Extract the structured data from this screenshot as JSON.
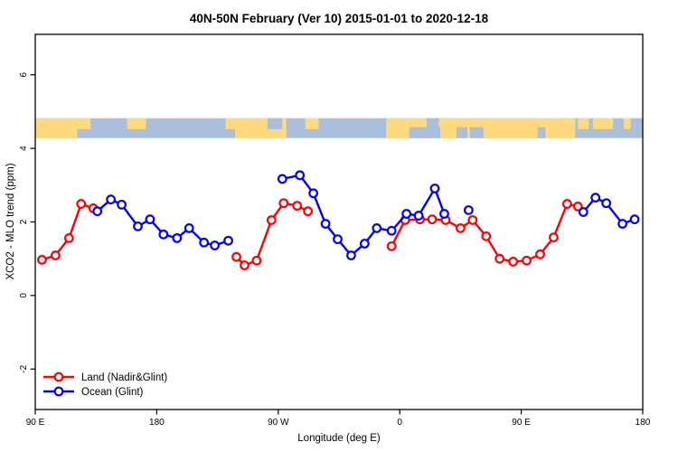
{
  "figure": {
    "title": "40N-50N February (Ver 10)  2015-01-01 to 2020-12-18"
  },
  "chart_data": {
    "type": "line",
    "title": "40N-50N February (Ver 10)  2015-01-01 to 2020-12-18",
    "xlabel": "Longitude (deg E)",
    "ylabel": "XCO2 - MLO trend (ppm)",
    "grid": false,
    "x_axis": {
      "description": "longitude shown eastward starting at 90E and wrapping past 180 and 0 back to 180; values below are degrees east of 90E",
      "range": [
        0,
        450
      ],
      "tick_values": [
        0,
        90,
        180,
        270,
        360,
        450
      ],
      "tick_labels": [
        "90 E",
        "180",
        "90 W",
        "0",
        "90 E",
        "180"
      ]
    },
    "y_axis": {
      "range": [
        -3.1,
        7.1
      ],
      "tick_values": [
        -2,
        0,
        2,
        4,
        6
      ],
      "tick_labels": [
        "-2",
        "0",
        "2",
        "4",
        "6"
      ]
    },
    "legend": {
      "position": "bottom-left",
      "entries": [
        {
          "label": "Land (Nadir&Glint)",
          "color": "#ff0000"
        },
        {
          "label": "Ocean (Glint)",
          "color": "#0000ff"
        }
      ]
    },
    "series": [
      {
        "name": "Land (Nadir&Glint)",
        "color": "#ff0000",
        "segments": [
          [
            [
              5,
              0.97
            ],
            [
              15,
              1.09
            ],
            [
              25,
              1.56
            ],
            [
              34,
              2.49
            ],
            [
              43,
              2.37
            ]
          ],
          [
            [
              149,
              1.05
            ],
            [
              155,
              0.82
            ],
            [
              164,
              0.95
            ],
            [
              175,
              2.05
            ],
            [
              184,
              2.51
            ],
            [
              194,
              2.44
            ],
            [
              202,
              2.29
            ]
          ],
          [
            [
              264,
              1.34
            ],
            [
              274,
              2.05
            ],
            [
              285,
              2.07
            ],
            [
              294,
              2.07
            ],
            [
              304,
              2.05
            ],
            [
              315,
              1.83
            ],
            [
              324,
              2.05
            ],
            [
              334,
              1.61
            ],
            [
              344,
              1.0
            ],
            [
              354,
              0.92
            ],
            [
              364,
              0.95
            ],
            [
              374,
              1.12
            ],
            [
              384,
              1.58
            ],
            [
              394,
              2.49
            ],
            [
              402,
              2.42
            ]
          ]
        ],
        "isolated_points": []
      },
      {
        "name": "Ocean (Glint)",
        "color": "#0000ff",
        "segments": [
          [
            [
              46,
              2.29
            ],
            [
              56,
              2.61
            ],
            [
              64,
              2.47
            ],
            [
              76,
              1.88
            ],
            [
              85,
              2.07
            ],
            [
              95,
              1.66
            ],
            [
              105,
              1.56
            ],
            [
              114,
              1.83
            ],
            [
              125,
              1.44
            ],
            [
              133,
              1.36
            ],
            [
              143,
              1.49
            ]
          ],
          [
            [
              183,
              3.17
            ],
            [
              196,
              3.27
            ],
            [
              206,
              2.78
            ],
            [
              215,
              1.95
            ],
            [
              224,
              1.53
            ],
            [
              234,
              1.09
            ],
            [
              244,
              1.41
            ],
            [
              253,
              1.83
            ],
            [
              264,
              1.76
            ],
            [
              275,
              2.22
            ],
            [
              284,
              2.17
            ],
            [
              296,
              2.91
            ],
            [
              303,
              2.22
            ]
          ],
          [
            [
              406,
              2.27
            ],
            [
              415,
              2.66
            ],
            [
              423,
              2.51
            ],
            [
              435,
              1.95
            ],
            [
              444,
              2.07
            ]
          ]
        ],
        "isolated_points": [
          [
            321,
            2.32
          ]
        ]
      }
    ],
    "map_strip": {
      "description": "land/ocean map band for the 40N-50N latitude belt drawn across the plot",
      "ppm_top": 4.82,
      "ppm_bottom": 4.28,
      "land_color": "#fed97d",
      "ocean_color": "#a9bfdc",
      "land_segments": [
        {
          "from": 0,
          "to": 31,
          "part": "full"
        },
        {
          "from": 31,
          "to": 41,
          "part": "top"
        },
        {
          "from": 68,
          "to": 82,
          "part": "top"
        },
        {
          "from": 141,
          "to": 148,
          "part": "top"
        },
        {
          "from": 148,
          "to": 186,
          "part": "full"
        },
        {
          "from": 200,
          "to": 210,
          "part": "top"
        },
        {
          "from": 260,
          "to": 400,
          "part": "full"
        },
        {
          "from": 402,
          "to": 410,
          "part": "top"
        },
        {
          "from": 413,
          "to": 428,
          "part": "top"
        },
        {
          "from": 436,
          "to": 441,
          "part": "top"
        }
      ],
      "ocean_patches": [
        {
          "from": 172,
          "to": 183,
          "part": "top"
        },
        {
          "from": 277,
          "to": 300,
          "part": "bottom"
        },
        {
          "from": 290,
          "to": 299,
          "part": "top"
        },
        {
          "from": 312,
          "to": 320,
          "part": "bottom"
        },
        {
          "from": 322,
          "to": 332,
          "part": "bottom"
        },
        {
          "from": 372,
          "to": 378,
          "part": "bottom"
        }
      ]
    }
  }
}
